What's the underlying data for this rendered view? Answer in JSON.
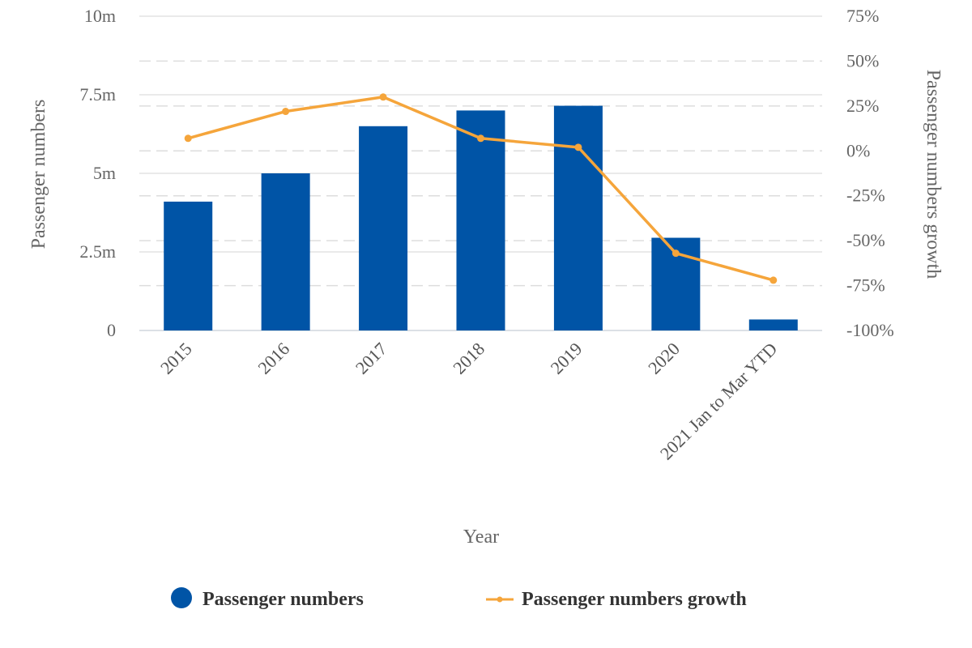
{
  "chart_data": {
    "type": "bar",
    "xlabel": "Year",
    "categories": [
      "2015",
      "2016",
      "2017",
      "2018",
      "2019",
      "2020",
      "2021 Jan to Mar YTD"
    ],
    "y_left": {
      "label": "Passenger numbers",
      "range": [
        0,
        10000000
      ],
      "ticks": [
        0,
        2500000,
        5000000,
        7500000,
        10000000
      ],
      "tick_labels": [
        "0",
        "2.5m",
        "5m",
        "7.5m",
        "10m"
      ]
    },
    "y_right": {
      "label": "Passenger numbers growth",
      "range": [
        -100,
        75
      ],
      "ticks": [
        -100,
        -75,
        -50,
        -25,
        0,
        25,
        50,
        75
      ],
      "tick_labels": [
        "-100%",
        "-75%",
        "-50%",
        "-25%",
        "0%",
        "25%",
        "50%",
        "75%"
      ]
    },
    "grid": true,
    "legend_position": "bottom",
    "series": [
      {
        "name": "Passenger numbers",
        "type": "bar",
        "axis": "left",
        "color": "#0054A6",
        "values": [
          4100000,
          5000000,
          6500000,
          7000000,
          7150000,
          2950000,
          350000
        ]
      },
      {
        "name": "Passenger numbers growth",
        "type": "line",
        "axis": "right",
        "color": "#F5A53B",
        "values": [
          7,
          22,
          30,
          7,
          2,
          -57,
          -72
        ]
      }
    ]
  }
}
